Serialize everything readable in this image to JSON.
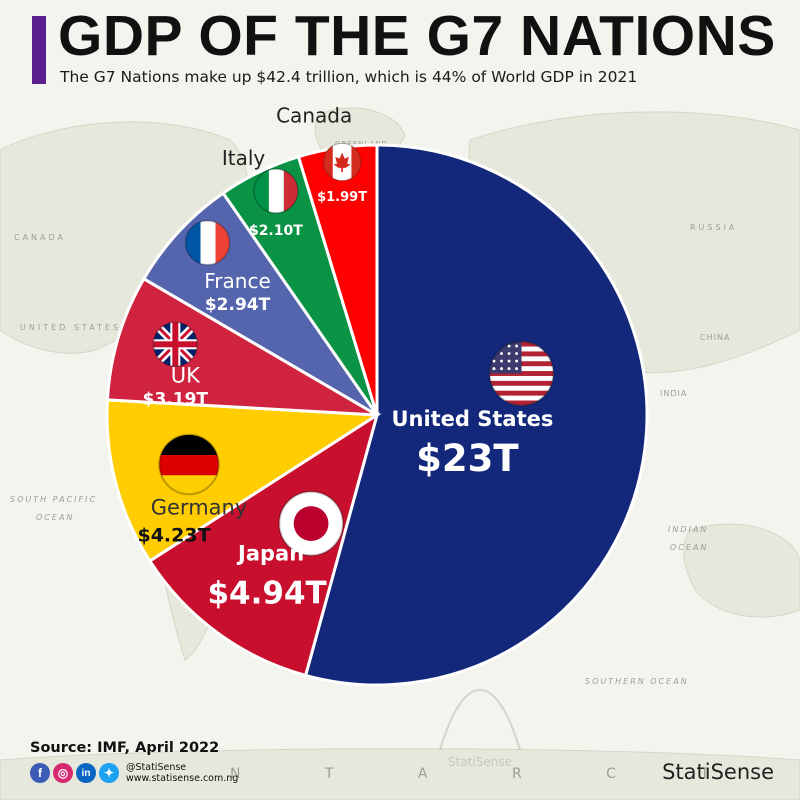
{
  "header": {
    "title": "GDP OF THE G7 NATIONS",
    "subtitle": "The G7 Nations make up $42.4 trillion, which is 44% of World GDP in 2021"
  },
  "map_labels": {
    "canada": "CANADA",
    "greenland": "GREENLAND",
    "russia": "RUSSIA",
    "united_states": "UNITED STATES",
    "south_pacific": "SOUTH PACIFIC",
    "ocean_pacific": "OCEAN",
    "indian": "INDIAN",
    "ocean_indian": "OCEAN",
    "southern_ocean": "SOUTHERN OCEAN",
    "china": "CHINA",
    "india": "INDIA",
    "antarctica_letters": "N T A R C T"
  },
  "chart_data": {
    "type": "pie",
    "start": "12 o'clock, clockwise",
    "slices": [
      {
        "country": "United States",
        "name_label": "United States",
        "value": 23.0,
        "value_label": "$23T",
        "color": "#13287a",
        "flag": "usa-flag-icon"
      },
      {
        "country": "Japan",
        "name_label": "Japan",
        "value": 4.94,
        "value_label": "$4.94T",
        "color": "#c8102e",
        "flag": "japan-flag-icon"
      },
      {
        "country": "Germany",
        "name_label": "Germany",
        "value": 4.23,
        "value_label": "$4.23T",
        "color": "#ffcd00",
        "flag": "germany-flag-icon"
      },
      {
        "country": "UK",
        "name_label": "UK",
        "value": 3.19,
        "value_label": "$3.19T",
        "color": "#cf2340",
        "flag": "uk-flag-icon"
      },
      {
        "country": "France",
        "name_label": "France",
        "value": 2.94,
        "value_label": "$2.94T",
        "color": "#5565ad",
        "flag": "france-flag-icon"
      },
      {
        "country": "Italy",
        "name_label": "Italy",
        "value": 2.1,
        "value_label": "$2.10T",
        "color": "#0a9245",
        "flag": "italy-flag-icon"
      },
      {
        "country": "Canada",
        "name_label": "Canada",
        "value": 1.99,
        "value_label": "$1.99T",
        "color": "#ff0000",
        "flag": "canada-flag-icon"
      }
    ]
  },
  "footer": {
    "source": "Source: IMF, April 2022",
    "handle": "@StatiSense",
    "website": "www.statisense.com.ng",
    "brand": "StatiSense",
    "watermark": "StatiSense"
  }
}
